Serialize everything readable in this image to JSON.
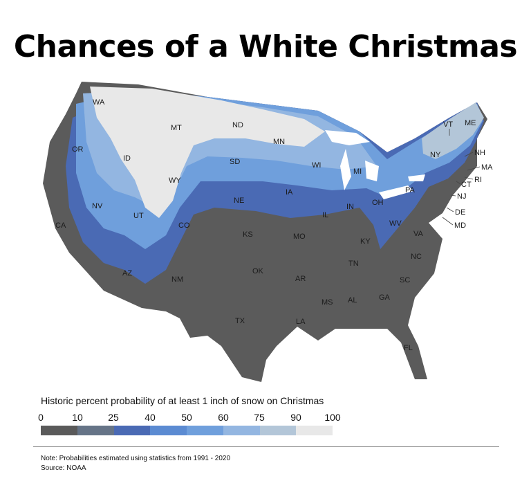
{
  "title": "Chances of a White Christmas",
  "legend": {
    "title": "Historic percent probability of at least 1 inch of snow on Christmas",
    "ticks": [
      "0",
      "10",
      "25",
      "40",
      "50",
      "60",
      "75",
      "90",
      "100"
    ],
    "colors": [
      "#5a5a5a",
      "#667487",
      "#4a6ab4",
      "#5b8bd2",
      "#6f9fdc",
      "#93b6e1",
      "#b3c6d8",
      "#e8e8e8"
    ]
  },
  "states": [
    "WA",
    "OR",
    "CA",
    "ID",
    "NV",
    "MT",
    "WY",
    "UT",
    "AZ",
    "CO",
    "NM",
    "ND",
    "SD",
    "NE",
    "KS",
    "OK",
    "TX",
    "MN",
    "IA",
    "MO",
    "AR",
    "LA",
    "WI",
    "IL",
    "MS",
    "MI",
    "IN",
    "KY",
    "TN",
    "AL",
    "OH",
    "GA",
    "FL",
    "WV",
    "PA",
    "VA",
    "NC",
    "SC",
    "NY",
    "VT",
    "ME",
    "NH",
    "MA",
    "RI",
    "CT",
    "NJ",
    "DE",
    "MD"
  ],
  "note": "Note: Probabilities estimated using statistics from 1991 - 2020",
  "source": "Source: NOAA"
}
